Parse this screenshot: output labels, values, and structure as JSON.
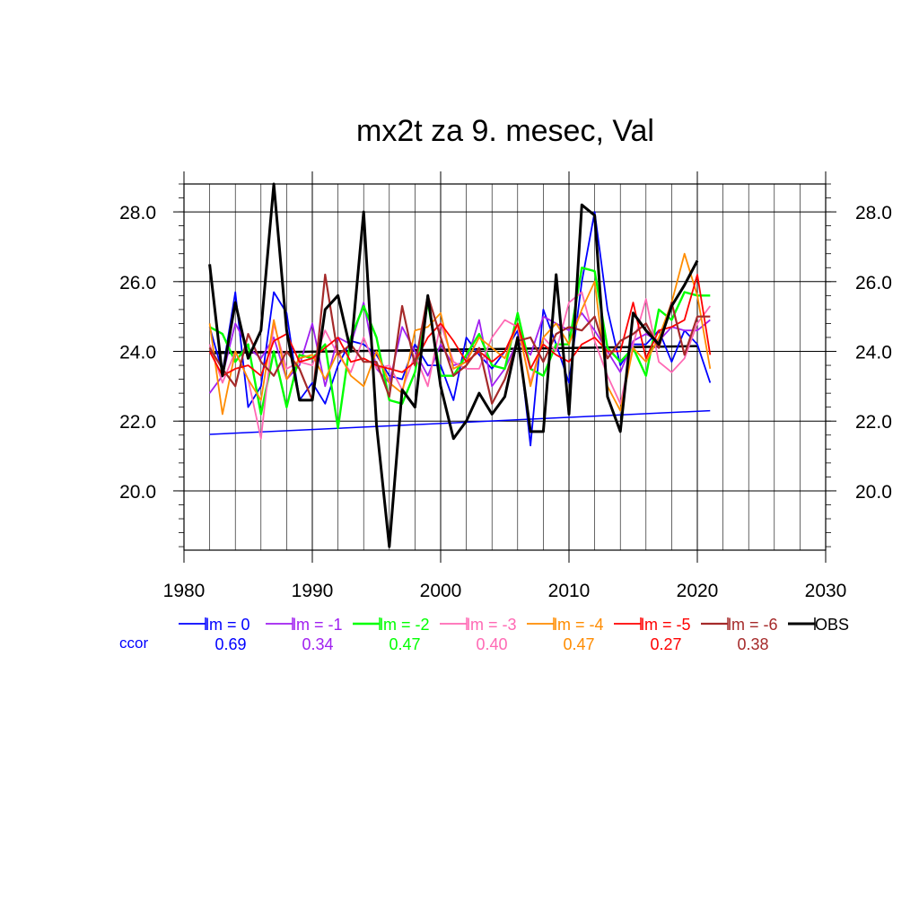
{
  "chart_data": {
    "type": "line",
    "title": "mx2t za 9. mesec, Val",
    "xlabel": "",
    "ylabel": "",
    "xlim": [
      1980,
      2030
    ],
    "ylim": [
      18.3,
      28.8
    ],
    "xticks": [
      "1980",
      "1990",
      "2000",
      "2010",
      "2020",
      "2030"
    ],
    "yticks": [
      "20.0",
      "22.0",
      "24.0",
      "26.0",
      "28.0"
    ],
    "grid": true,
    "years": [
      1982,
      1983,
      1984,
      1985,
      1986,
      1987,
      1988,
      1989,
      1990,
      1991,
      1992,
      1993,
      1994,
      1995,
      1996,
      1997,
      1998,
      1999,
      2000,
      2001,
      2002,
      2003,
      2004,
      2005,
      2006,
      2007,
      2008,
      2009,
      2010,
      2011,
      2012,
      2013,
      2014,
      2015,
      2016,
      2017,
      2018,
      2019,
      2020,
      2021
    ],
    "series": [
      {
        "name": "lm = 0",
        "color": "#0000ff",
        "width": 1.8,
        "values": [
          24.7,
          23.4,
          25.7,
          22.4,
          23.0,
          25.7,
          25.1,
          22.6,
          23.1,
          22.5,
          23.6,
          24.3,
          24.2,
          23.9,
          23.3,
          23.2,
          24.2,
          23.6,
          23.6,
          22.6,
          24.4,
          23.9,
          23.5,
          24.0,
          24.6,
          21.3,
          25.2,
          24.2,
          23.1,
          26.0,
          28.0,
          25.2,
          23.6,
          24.2,
          24.2,
          24.6,
          23.7,
          24.6,
          24.2,
          23.1
        ]
      },
      {
        "name": "lm = -1",
        "color": "#a020f0",
        "width": 1.8,
        "values": [
          22.8,
          23.3,
          24.8,
          24.1,
          23.8,
          24.4,
          23.2,
          23.6,
          24.8,
          23.0,
          24.4,
          24.2,
          25.4,
          23.5,
          23.1,
          24.7,
          24.0,
          23.3,
          24.2,
          23.6,
          23.7,
          24.9,
          23.0,
          23.5,
          24.3,
          23.9,
          25.0,
          24.8,
          24.6,
          25.1,
          24.6,
          24.0,
          23.4,
          24.3,
          24.5,
          24.3,
          24.7,
          24.6,
          24.6,
          24.9
        ]
      },
      {
        "name": "lm = -2",
        "color": "#00ff00",
        "width": 2.4,
        "values": [
          24.7,
          24.5,
          23.7,
          24.2,
          22.2,
          24.0,
          22.4,
          23.9,
          23.8,
          24.2,
          21.8,
          24.4,
          25.3,
          24.4,
          22.6,
          22.5,
          23.4,
          25.4,
          23.3,
          23.3,
          23.9,
          24.5,
          23.6,
          23.5,
          25.1,
          23.5,
          23.3,
          24.2,
          24.2,
          26.4,
          26.3,
          24.1,
          23.7,
          24.1,
          23.3,
          25.2,
          24.9,
          25.7,
          25.6,
          25.6
        ]
      },
      {
        "name": "lm = -3",
        "color": "#ff69b4",
        "width": 1.8,
        "values": [
          24.2,
          23.1,
          24.0,
          23.2,
          21.5,
          24.8,
          23.5,
          23.7,
          23.6,
          24.6,
          23.9,
          23.4,
          24.4,
          23.5,
          23.6,
          22.9,
          23.9,
          23.0,
          24.8,
          23.7,
          23.5,
          23.5,
          24.4,
          24.9,
          24.7,
          23.1,
          24.4,
          24.0,
          25.4,
          25.7,
          24.3,
          23.3,
          22.5,
          24.2,
          25.5,
          23.7,
          23.4,
          23.8,
          24.8,
          25.3
        ]
      },
      {
        "name": "lm = -4",
        "color": "#ff8c00",
        "width": 1.8,
        "values": [
          24.8,
          22.2,
          24.0,
          23.2,
          22.6,
          24.9,
          23.2,
          23.8,
          23.9,
          23.2,
          24.0,
          23.3,
          23.0,
          24.0,
          23.1,
          22.8,
          24.6,
          24.7,
          25.1,
          23.5,
          23.7,
          24.4,
          24.1,
          23.8,
          24.8,
          23.0,
          24.4,
          24.8,
          24.2,
          25.2,
          26.0,
          23.0,
          22.3,
          24.1,
          23.7,
          24.4,
          25.4,
          26.8,
          25.6,
          23.5
        ]
      },
      {
        "name": "lm = -5",
        "color": "#ff0000",
        "width": 1.8,
        "values": [
          24.0,
          23.3,
          23.5,
          23.6,
          23.3,
          24.3,
          24.5,
          23.7,
          23.8,
          24.1,
          24.4,
          23.7,
          23.8,
          23.6,
          23.5,
          23.4,
          23.7,
          24.4,
          24.8,
          24.3,
          23.7,
          24.0,
          23.7,
          24.0,
          24.8,
          23.5,
          24.2,
          23.9,
          23.7,
          24.2,
          24.4,
          24.0,
          24.0,
          25.4,
          23.8,
          24.6,
          24.7,
          24.9,
          26.2,
          23.9
        ]
      },
      {
        "name": "lm = -6",
        "color": "#a52a2a",
        "width": 2.2,
        "values": [
          24.1,
          23.5,
          23.0,
          24.5,
          23.7,
          23.3,
          24.0,
          23.5,
          22.6,
          26.2,
          23.9,
          24.2,
          23.7,
          23.7,
          22.7,
          25.3,
          23.6,
          25.6,
          24.4,
          23.3,
          23.6,
          24.1,
          22.5,
          23.2,
          24.3,
          24.4,
          23.7,
          24.5,
          24.7,
          24.6,
          25.0,
          23.8,
          24.3,
          24.5,
          24.8,
          24.1,
          25.4,
          23.9,
          25.0,
          25.0
        ]
      },
      {
        "name": "OBS",
        "color": "#000000",
        "width": 3.0,
        "values": [
          26.5,
          23.3,
          25.4,
          23.8,
          24.6,
          28.8,
          24.6,
          22.6,
          22.6,
          25.2,
          25.6,
          24.0,
          28.0,
          21.9,
          18.4,
          22.9,
          22.4,
          25.6,
          23.0,
          21.5,
          22.0,
          22.8,
          22.2,
          22.7,
          24.4,
          21.7,
          21.7,
          26.2,
          22.2,
          28.2,
          27.9,
          22.7,
          21.7,
          25.1,
          24.6,
          24.2,
          25.3,
          25.9,
          26.6
        ]
      }
    ],
    "trend_lines": [
      {
        "color": "#0000ff",
        "width": 1.5,
        "x": [
          1982,
          2021
        ],
        "y": [
          21.62,
          22.3
        ]
      },
      {
        "color": "#000000",
        "width": 2.5,
        "x": [
          1982,
          2020
        ],
        "y": [
          23.95,
          24.15
        ]
      }
    ],
    "ccor_label": "ccor",
    "ccor_color": "#0000ff",
    "ccor": [
      "0.69",
      "0.34",
      "0.47",
      "0.40",
      "0.47",
      "0.27",
      "0.38"
    ]
  }
}
